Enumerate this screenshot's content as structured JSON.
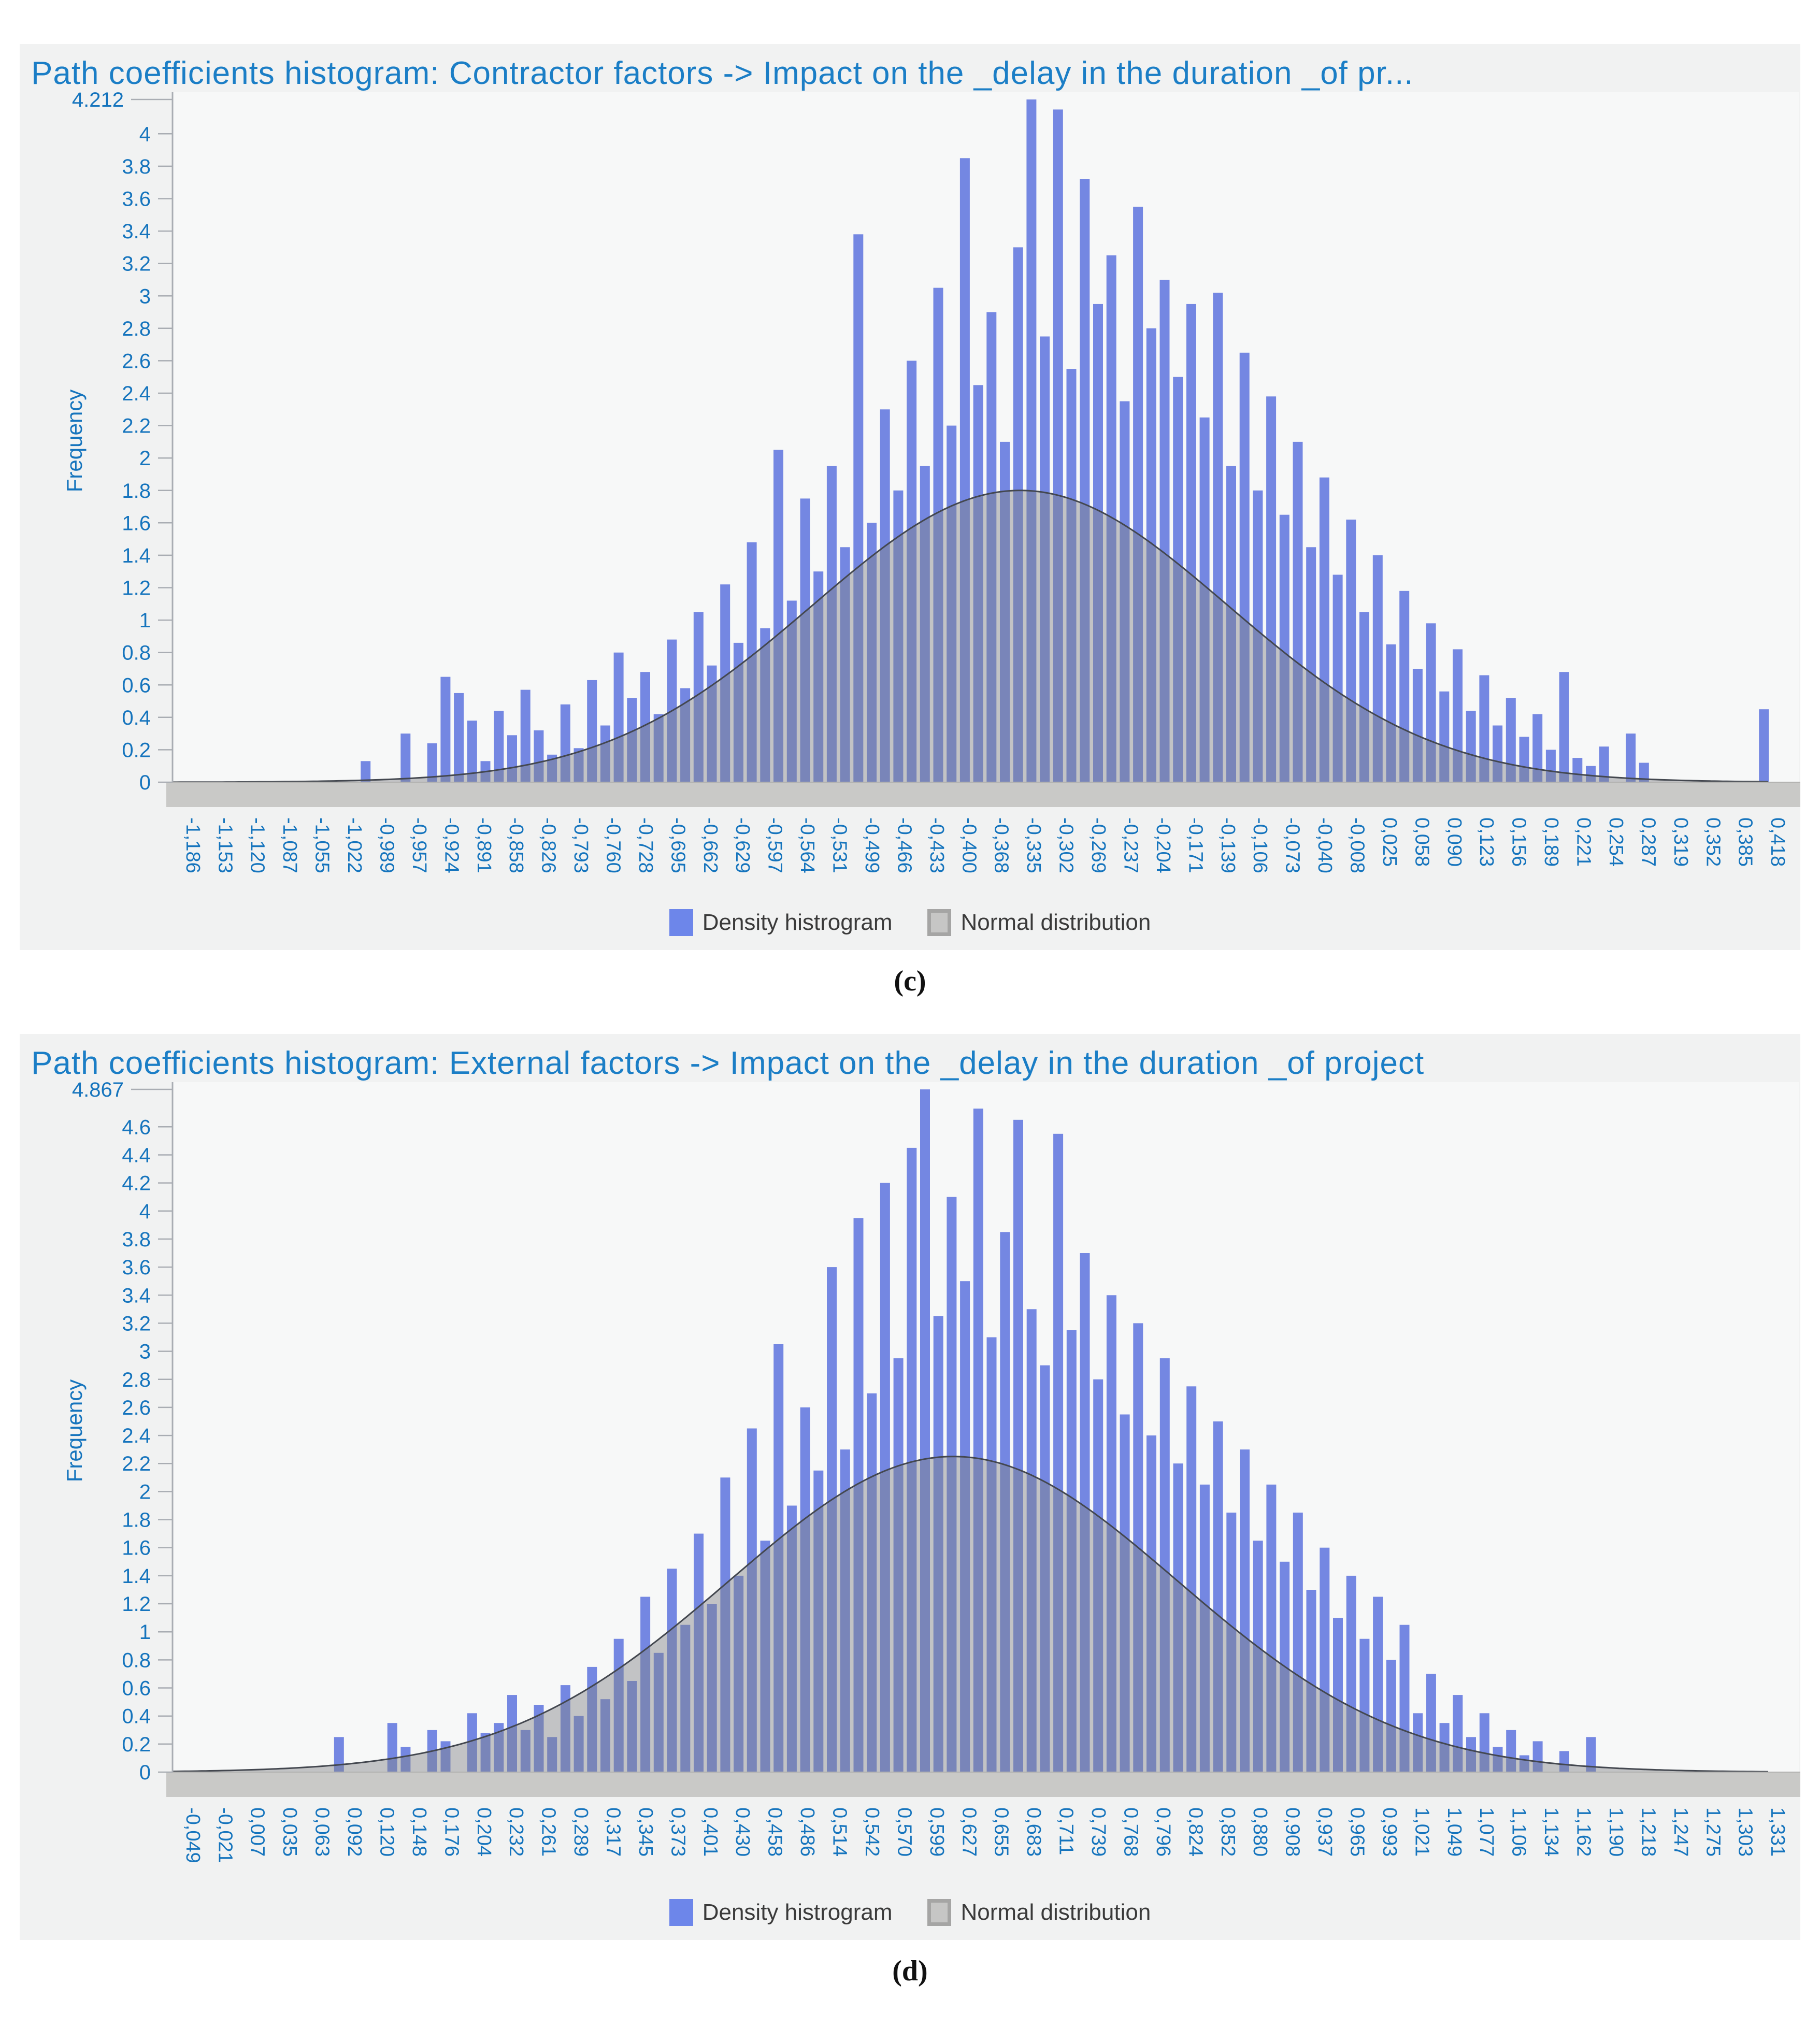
{
  "colors": {
    "title_blue": "#1b7ec6",
    "tick_blue": "#1574bd",
    "bar_fill": "#7487e2",
    "curve_fill": "#808287",
    "curve_fill_opacity": 0.45,
    "curve_stroke": "#43474f",
    "band_fill": "#c9c9c7",
    "band_edge": "#b2b2b0",
    "panel_bg": "#f1f2f2",
    "plot_bg": "#f7f8f8",
    "axis_gray": "#a9adb3",
    "legend_text": "#3a3a3a",
    "legend_blue_swatch": "#6d86ea",
    "legend_gray_swatch": "#c6c6c5",
    "legend_gray_border": "#a5a5a4"
  },
  "chart_data": [
    {
      "id": "c",
      "caption": "(c)",
      "type": "bar",
      "subtype": "density-histogram-with-normal-overlay",
      "title": "Path coefficients histogram: Contractor factors -> Impact on the _delay in the duration _of pr...",
      "xlabel": "",
      "ylabel": "Frequency",
      "legend": [
        "Density histrogram",
        "Normal distribution"
      ],
      "ymax": 4.212,
      "yticks": [
        "4.212",
        "4",
        "3.8",
        "3.6",
        "3.4",
        "3.2",
        "3",
        "2.8",
        "2.6",
        "2.4",
        "2.2",
        "2",
        "1.8",
        "1.6",
        "1.4",
        "1.2",
        "1",
        "0.8",
        "0.6",
        "0.4",
        "0.2",
        "0"
      ],
      "xmin": -1.186,
      "xmax": 0.418,
      "xticks": [
        "-1,186",
        "-1,153",
        "-1,120",
        "-1,087",
        "-1,055",
        "-1,022",
        "-0,989",
        "-0,957",
        "-0,924",
        "-0,891",
        "-0,858",
        "-0,826",
        "-0,793",
        "-0,760",
        "-0,728",
        "-0,695",
        "-0,662",
        "-0,629",
        "-0,597",
        "-0,564",
        "-0,531",
        "-0,499",
        "-0,466",
        "-0,433",
        "-0,400",
        "-0,368",
        "-0,335",
        "-0,302",
        "-0,269",
        "-0,237",
        "-0,204",
        "-0,171",
        "-0,139",
        "-0,106",
        "-0,073",
        "-0,040",
        "-0,008",
        "0,025",
        "0,058",
        "0,090",
        "0,123",
        "0,156",
        "0,189",
        "0,221",
        "0,254",
        "0,287",
        "0,319",
        "0,352",
        "0,385",
        "0,418"
      ],
      "bars": {
        "x_start": -1.186,
        "dx": 0.013477,
        "heights": [
          0,
          0,
          0,
          0,
          0,
          0,
          0,
          0,
          0,
          0,
          0,
          0,
          0,
          0,
          0.13,
          0,
          0,
          0.3,
          0,
          0.24,
          0.65,
          0.55,
          0.38,
          0.13,
          0.44,
          0.29,
          0.57,
          0.32,
          0.17,
          0.48,
          0.21,
          0.63,
          0.35,
          0.8,
          0.52,
          0.68,
          0.42,
          0.88,
          0.58,
          1.05,
          0.72,
          1.22,
          0.86,
          1.48,
          0.95,
          2.05,
          1.12,
          1.75,
          1.3,
          1.95,
          1.45,
          3.38,
          1.6,
          2.3,
          1.8,
          2.6,
          1.95,
          3.05,
          2.2,
          3.85,
          2.45,
          2.9,
          2.1,
          3.3,
          4.212,
          2.75,
          4.15,
          2.55,
          3.72,
          2.95,
          3.25,
          2.35,
          3.55,
          2.8,
          3.1,
          2.5,
          2.95,
          2.25,
          3.02,
          1.95,
          2.65,
          1.8,
          2.38,
          1.65,
          2.1,
          1.45,
          1.88,
          1.28,
          1.62,
          1.05,
          1.4,
          0.85,
          1.18,
          0.7,
          0.98,
          0.56,
          0.82,
          0.44,
          0.66,
          0.35,
          0.52,
          0.28,
          0.42,
          0.2,
          0.68,
          0.15,
          0.1,
          0.22,
          0,
          0.3,
          0.12,
          0,
          0,
          0,
          0,
          0,
          0,
          0,
          0,
          0.45
        ]
      },
      "normal_curve": {
        "mean": -0.335,
        "sigma": 0.21,
        "peak": 1.8
      }
    },
    {
      "id": "d",
      "caption": "(d)",
      "type": "bar",
      "subtype": "density-histogram-with-normal-overlay",
      "title": "Path coefficients histogram: External factors -> Impact on the _delay in the duration _of project",
      "xlabel": "",
      "ylabel": "Frequency",
      "legend": [
        "Density histrogram",
        "Normal distribution"
      ],
      "ymax": 4.867,
      "yticks": [
        "4.867",
        "4.6",
        "4.4",
        "4.2",
        "4",
        "3.8",
        "3.6",
        "3.4",
        "3.2",
        "3",
        "2.8",
        "2.6",
        "2.4",
        "2.2",
        "2",
        "1.8",
        "1.6",
        "1.4",
        "1.2",
        "1",
        "0.8",
        "0.6",
        "0.4",
        "0.2",
        "0"
      ],
      "xmin": -0.049,
      "xmax": 1.331,
      "xticks": [
        "-0,049",
        "-0,021",
        "0,007",
        "0,035",
        "0,063",
        "0,092",
        "0,120",
        "0,148",
        "0,176",
        "0,204",
        "0,232",
        "0,261",
        "0,289",
        "0,317",
        "0,345",
        "0,373",
        "0,401",
        "0,430",
        "0,458",
        "0,486",
        "0,514",
        "0,542",
        "0,570",
        "0,599",
        "0,627",
        "0,655",
        "0,683",
        "0,711",
        "0,739",
        "0,768",
        "0,796",
        "0,824",
        "0,852",
        "0,880",
        "0,908",
        "0,937",
        "0,965",
        "0,993",
        "1,021",
        "1,049",
        "1,077",
        "1,106",
        "1,134",
        "1,162",
        "1,190",
        "1,218",
        "1,247",
        "1,275",
        "1,303",
        "1,331"
      ],
      "bars": {
        "x_start": -0.049,
        "dx": 0.0115966,
        "heights": [
          0,
          0,
          0,
          0,
          0,
          0,
          0,
          0,
          0,
          0,
          0,
          0,
          0.25,
          0,
          0,
          0,
          0.35,
          0.18,
          0,
          0.3,
          0.22,
          0,
          0.42,
          0.28,
          0.35,
          0.55,
          0.3,
          0.48,
          0.25,
          0.62,
          0.4,
          0.75,
          0.52,
          0.95,
          0.65,
          1.25,
          0.85,
          1.45,
          1.05,
          1.7,
          1.2,
          2.1,
          1.4,
          2.45,
          1.65,
          3.05,
          1.9,
          2.6,
          2.15,
          3.6,
          2.3,
          3.95,
          2.7,
          4.2,
          2.95,
          4.45,
          4.867,
          3.25,
          4.1,
          3.5,
          4.73,
          3.1,
          3.85,
          4.65,
          3.3,
          2.9,
          4.55,
          3.15,
          3.7,
          2.8,
          3.4,
          2.55,
          3.2,
          2.4,
          2.95,
          2.2,
          2.75,
          2.05,
          2.5,
          1.85,
          2.3,
          1.65,
          2.05,
          1.5,
          1.85,
          1.3,
          1.6,
          1.1,
          1.4,
          0.95,
          1.25,
          0.8,
          1.05,
          0.42,
          0.7,
          0.35,
          0.55,
          0.25,
          0.42,
          0.18,
          0.3,
          0.12,
          0.22,
          0,
          0.15,
          0,
          0.25,
          0,
          0,
          0,
          0,
          0,
          0,
          0,
          0,
          0,
          0,
          0,
          0,
          0,
          0
        ]
      },
      "normal_curve": {
        "mean": 0.625,
        "sigma": 0.195,
        "peak": 2.25
      }
    }
  ]
}
